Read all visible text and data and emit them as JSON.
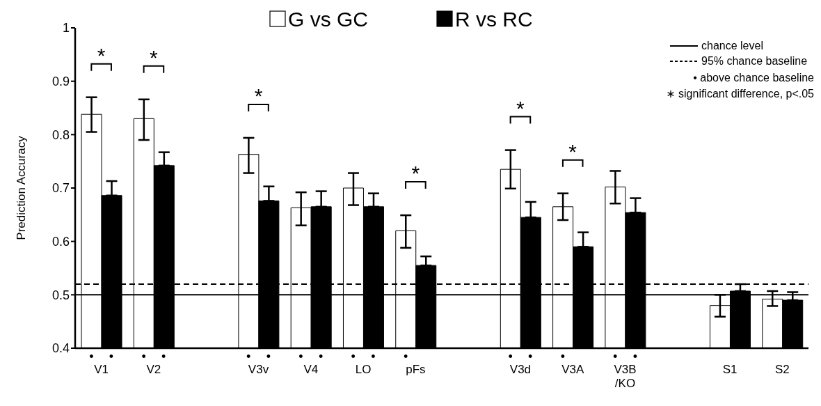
{
  "chart_data": {
    "type": "bar",
    "ylabel": "Prediction Accuracy",
    "categories": [
      "V1",
      "V2",
      null,
      "V3v",
      "V4",
      "LO",
      "pFs",
      null,
      "V3d",
      "V3A",
      "V3B\n/KO",
      null,
      "S1",
      "S2"
    ],
    "series": [
      {
        "name": "G vs GC",
        "color": "#ffffff",
        "values": [
          0.838,
          0.83,
          null,
          0.763,
          0.663,
          0.7,
          0.62,
          null,
          0.735,
          0.665,
          0.702,
          null,
          0.48,
          0.492
        ],
        "errors": [
          [
            0.805,
            0.87
          ],
          [
            0.79,
            0.866
          ],
          null,
          [
            0.728,
            0.794
          ],
          [
            0.63,
            0.692
          ],
          [
            0.668,
            0.728
          ],
          [
            0.588,
            0.649
          ],
          null,
          [
            0.699,
            0.771
          ],
          [
            0.64,
            0.69
          ],
          [
            0.671,
            0.732
          ],
          null,
          [
            0.459,
            0.5
          ],
          [
            0.479,
            0.507
          ]
        ]
      },
      {
        "name": "R vs RC",
        "color": "#000000",
        "values": [
          0.686,
          0.742,
          null,
          0.676,
          0.665,
          0.665,
          0.555,
          null,
          0.645,
          0.59,
          0.654,
          null,
          0.507,
          0.49
        ],
        "errors": [
          [
            0.686,
            0.713
          ],
          [
            0.742,
            0.767
          ],
          null,
          [
            0.676,
            0.703
          ],
          [
            0.665,
            0.694
          ],
          [
            0.665,
            0.69
          ],
          [
            0.555,
            0.572
          ],
          null,
          [
            0.645,
            0.674
          ],
          [
            0.59,
            0.617
          ],
          [
            0.654,
            0.681
          ],
          null,
          [
            0.507,
            0.52
          ],
          [
            0.49,
            0.505
          ]
        ]
      }
    ],
    "ylim": [
      0.4,
      1
    ],
    "yticks": [
      0.4,
      0.5,
      0.6,
      0.7,
      0.8,
      0.9,
      1
    ],
    "legend": "top",
    "ref_lines": [
      {
        "axis": "y",
        "value": 0.5,
        "label": "chance level",
        "line_style": "solid",
        "color": "#000000"
      },
      {
        "axis": "y",
        "value": 0.52,
        "label": "95% chance baseline",
        "line_style": "dashed",
        "color": "#000000"
      }
    ],
    "annotations": [
      "*",
      "*",
      "*",
      "*",
      "*",
      "*",
      "•",
      "•",
      "•",
      "•",
      "•",
      "•",
      "•",
      "•",
      "•",
      "•",
      "•",
      "•",
      "•",
      "•",
      "•",
      "•",
      "• above chance baseline",
      "∗ significant difference, p<.05"
    ]
  }
}
